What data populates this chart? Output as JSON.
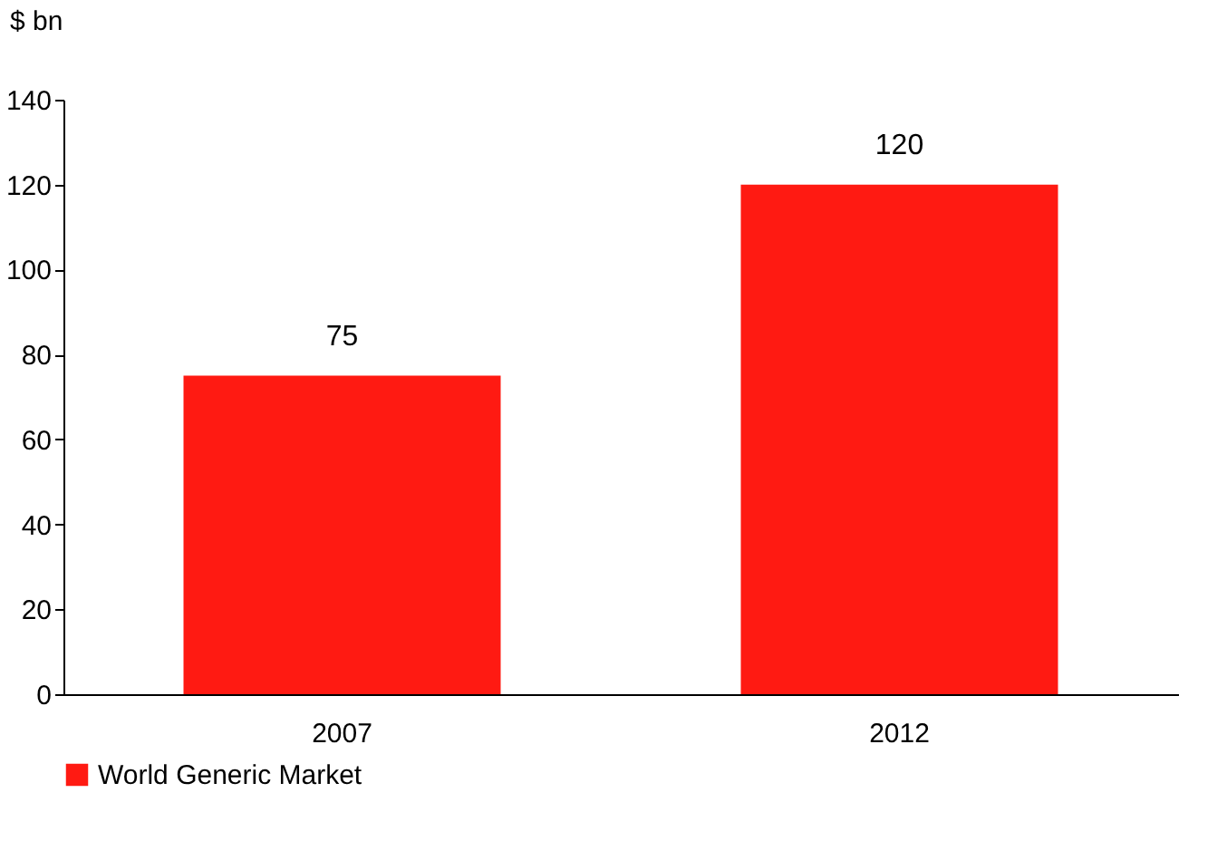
{
  "chart_data": {
    "type": "bar",
    "ylabel": "$ bn",
    "categories": [
      "2007",
      "2012"
    ],
    "series": [
      {
        "name": "World Generic Market",
        "color": "#ff1a12",
        "values": [
          75,
          120
        ]
      }
    ],
    "ylim": [
      0,
      140
    ],
    "yticks": [
      0,
      20,
      40,
      60,
      80,
      100,
      120,
      140
    ],
    "grid": false,
    "legend": "bottom",
    "data_labels": true
  }
}
